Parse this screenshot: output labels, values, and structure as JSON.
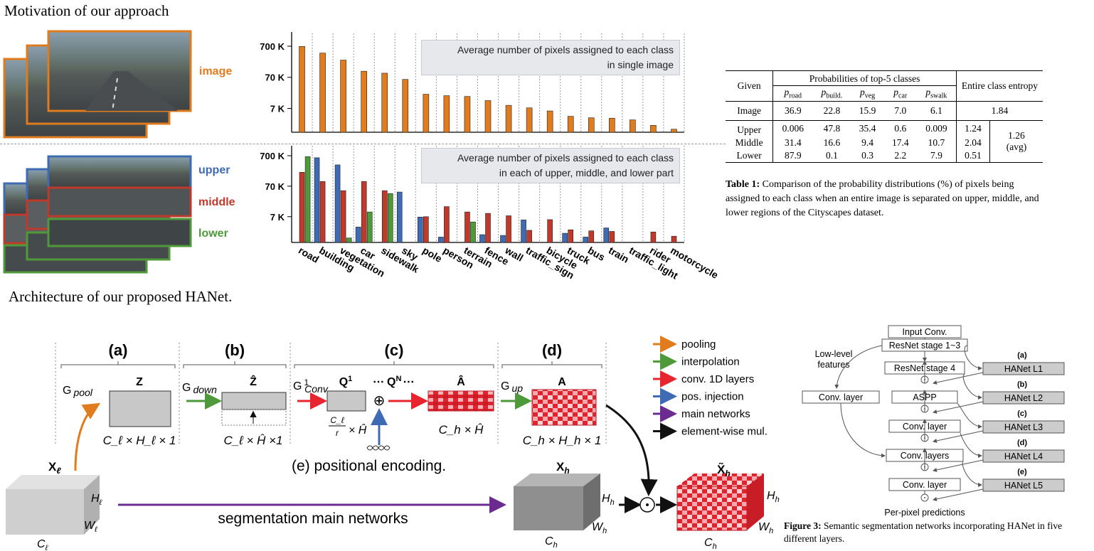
{
  "top_section": {
    "title": "Motivation of our approach",
    "image_labels": {
      "image": "image",
      "upper": "upper",
      "middle": "middle",
      "lower": "lower"
    },
    "colors": {
      "image": "#e07b1e",
      "upper": "#3e6bb4",
      "middle": "#c0392b",
      "lower": "#4e9a3a"
    }
  },
  "chart_data": [
    {
      "type": "bar",
      "scale": "log",
      "annotation": [
        "Average number of pixels assigned to each class",
        "in single image"
      ],
      "yticks": [
        "700 K",
        "70 K",
        "7 K"
      ],
      "ytick_values": [
        700000,
        70000,
        7000
      ],
      "categories": [
        "road",
        "building",
        "vegetation",
        "car",
        "sidewalk",
        "sky",
        "pole",
        "person",
        "terrain",
        "fence",
        "wall",
        "traffic_sign",
        "bicycle",
        "truck",
        "bus",
        "train",
        "traffic_light",
        "rider",
        "motorcycle"
      ],
      "series": [
        {
          "color": "#e07b1e",
          "values": [
            690000,
            420000,
            250000,
            110000,
            95000,
            60000,
            20000,
            18000,
            17000,
            12500,
            8800,
            7300,
            5800,
            3900,
            3500,
            3400,
            3000,
            2000,
            1500
          ]
        }
      ]
    },
    {
      "type": "bar",
      "scale": "log",
      "annotation": [
        "Average number of pixels assigned to each class",
        "in each of upper, middle, and lower part"
      ],
      "yticks": [
        "700 K",
        "70 K",
        "7 K"
      ],
      "ytick_values": [
        700000,
        70000,
        7000
      ],
      "categories": [
        "road",
        "building",
        "vegetation",
        "car",
        "sidewalk",
        "sky",
        "pole",
        "person",
        "terrain",
        "fence",
        "wall",
        "traffic_sign",
        "bicycle",
        "truck",
        "bus",
        "train",
        "traffic_light",
        "rider",
        "motorcycle"
      ],
      "series": [
        {
          "name": "upper",
          "color": "#3e6bb4",
          "values": [
            0,
            600000,
            350000,
            3200,
            0,
            45000,
            6800,
            1500,
            0,
            1800,
            1700,
            5500,
            0,
            2000,
            1500,
            3000,
            0,
            0,
            0
          ]
        },
        {
          "name": "middle",
          "color": "#c0392b",
          "values": [
            200000,
            100000,
            50000,
            100000,
            50000,
            0,
            7000,
            15000,
            10000,
            9000,
            7500,
            2500,
            5600,
            2600,
            2400,
            2300,
            0,
            2200,
            1600
          ]
        },
        {
          "name": "lower",
          "color": "#4e9a3a",
          "values": [
            650000,
            0,
            1400,
            10000,
            40000,
            0,
            0,
            1000,
            4700,
            0,
            0,
            0,
            0,
            0,
            0,
            0,
            0,
            0,
            0
          ]
        }
      ]
    }
  ],
  "table": {
    "headers": {
      "given": "Given",
      "prob": "Probabilities of top-5 classes",
      "entropy": "Entire class entropy"
    },
    "subheaders": [
      {
        "p": "p",
        "sub": "road"
      },
      {
        "p": "p",
        "sub": "build."
      },
      {
        "p": "p",
        "sub": "veg"
      },
      {
        "p": "p",
        "sub": "car"
      },
      {
        "p": "p",
        "sub": "swalk"
      }
    ],
    "image_row": {
      "label": "Image",
      "vals": [
        "36.9",
        "22.8",
        "15.9",
        "7.0",
        "6.1"
      ],
      "entropy": "1.84"
    },
    "rows": [
      {
        "label": "Upper",
        "vals": [
          "0.006",
          "47.8",
          "35.4",
          "0.6",
          "0.009"
        ],
        "entropy": "1.24"
      },
      {
        "label": "Middle",
        "vals": [
          "31.4",
          "16.6",
          "9.4",
          "17.4",
          "10.7"
        ],
        "entropy": "2.04"
      },
      {
        "label": "Lower",
        "vals": [
          "87.9",
          "0.1",
          "0.3",
          "2.2",
          "7.9"
        ],
        "entropy": "0.51"
      }
    ],
    "avg_value": "1.26",
    "avg_label": "(avg)",
    "caption_bold": "Table 1:",
    "caption_text": "Comparison of the probability distributions (%) of pixels being assigned to each class when an entire image is separated on upper, middle, and lower regions of the Cityscapes dataset."
  },
  "architecture": {
    "title": "Architecture of our proposed HANet.",
    "stages": {
      "a": "(a)",
      "b": "(b)",
      "c": "(c)",
      "d": "(d)"
    },
    "g_pool": "G",
    "g_pool_sub": "pool",
    "g_down": "G",
    "g_down_sub": "down",
    "g_conv": "G",
    "g_conv_sup": "1",
    "g_conv_sub": "Conv",
    "g_up": "G",
    "g_up_sub": "up",
    "z": "Z",
    "zhat": "Ẑ",
    "q1": "Q",
    "q1_sup": "1",
    "qn": "Q",
    "qn_sup": "N",
    "dots": "⋯",
    "oplus": "⊕",
    "ahat": "Â",
    "a": "A",
    "dim_z": "C_ℓ × H_ℓ × 1",
    "dim_zhat": "C_ℓ × Ĥ ×1",
    "dim_q": "× Ĥ",
    "frac_num": "C_ℓ",
    "frac_den": "r",
    "dim_ahat": "C_h × Ĥ",
    "dim_a": "C_h × H_h × 1",
    "pos_enc": "(e) positional encoding.",
    "xl": "X",
    "xl_sub": "ℓ",
    "hl": "H",
    "hl_sub": "ℓ",
    "wl": "W",
    "wl_sub": "ℓ",
    "cl": "C",
    "cl_sub": "ℓ",
    "main_net": "segmentation main networks",
    "xh": "X",
    "xh_sub": "h",
    "hh": "H",
    "hh_sub": "h",
    "wh": "W",
    "wh_sub": "h",
    "ch": "C",
    "ch_sub": "h",
    "xht": "X̃",
    "xht_sub": "h",
    "hh2": "H",
    "wh2": "W",
    "ch2": "C",
    "odot": "⊙"
  },
  "legend": [
    {
      "label": "pooling",
      "color": "#e07b1e"
    },
    {
      "label": "interpolation",
      "color": "#4e9a3a"
    },
    {
      "label": "conv. 1D layers",
      "color": "#e8242e"
    },
    {
      "label": "pos. injection",
      "color": "#3e6bb4"
    },
    {
      "label": "main networks",
      "color": "#6a2c91"
    },
    {
      "label": "element-wise mul.",
      "color": "#111111"
    }
  ],
  "figure3": {
    "left_boxes": [
      "Input Conv.",
      "ResNet stage 1~3",
      "ResNet stage 4",
      "ASPP",
      "Conv. layer",
      "Conv. layers",
      "Conv. layer"
    ],
    "hanet_boxes": [
      "HANet L1",
      "HANet L2",
      "HANet L3",
      "HANet L4",
      "HANet L5"
    ],
    "hanet_letters": [
      "(a)",
      "(b)",
      "(c)",
      "(d)",
      "(e)"
    ],
    "lowlevel": [
      "Low-level",
      "features"
    ],
    "side_conv": "Conv. layer",
    "output": "Per-pixel predictions",
    "caption_bold": "Figure 3:",
    "caption_text": "Semantic segmentation networks incorporating HANet in five different layers."
  }
}
